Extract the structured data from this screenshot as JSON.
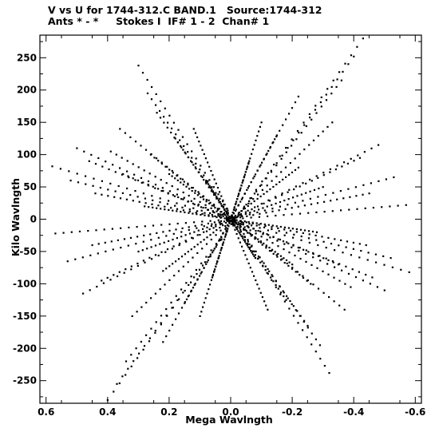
{
  "header": {
    "line1": "V vs U for 1744-312.C BAND.1   Source:1744-312",
    "line2": "Ants * - *     Stokes I  IF# 1 - 2  Chan# 1"
  },
  "chart_data": {
    "type": "scatter",
    "title": "V vs U for 1744-312.C BAND.1   Source:1744-312",
    "subtitle": "Ants * - *     Stokes I  IF# 1 - 2  Chan# 1",
    "xlabel": "Mega Wavlngth",
    "ylabel": "Kilo Wavlngth",
    "xlim": [
      0.62,
      -0.62
    ],
    "ylim": [
      -285,
      285
    ],
    "x_ticks": [
      0.6,
      0.4,
      0.2,
      0.0,
      -0.2,
      -0.4,
      -0.6
    ],
    "x_tick_labels": [
      "0.6",
      "0.4",
      "0.2",
      "0.0",
      "-0.2",
      "-0.4",
      "-0.6"
    ],
    "y_ticks": [
      250,
      200,
      150,
      100,
      50,
      0,
      -50,
      -100,
      -150,
      -200,
      -250
    ],
    "y_tick_labels": [
      "250",
      "200",
      "150",
      "100",
      "50",
      "0",
      "-50",
      "-100",
      "-150",
      "-200",
      "-250"
    ],
    "grid": false,
    "marker_color": "#000000",
    "tracks": [
      {
        "u0": 0.58,
        "v0": 82,
        "u1": -0.58,
        "v1": -82
      },
      {
        "u0": 0.57,
        "v0": -22,
        "u1": -0.57,
        "v1": 22
      },
      {
        "u0": 0.52,
        "v0": 60,
        "u1": -0.52,
        "v1": -60
      },
      {
        "u0": 0.53,
        "v0": -65,
        "u1": -0.53,
        "v1": 65
      },
      {
        "u0": 0.46,
        "v0": 90,
        "u1": -0.46,
        "v1": -90
      },
      {
        "u0": 0.48,
        "v0": -115,
        "u1": -0.48,
        "v1": 115
      },
      {
        "u0": 0.39,
        "v0": 105,
        "u1": -0.39,
        "v1": -105
      },
      {
        "u0": 0.4,
        "v0": -280,
        "u1": -0.43,
        "v1": 280
      },
      {
        "u0": 0.37,
        "v0": -255,
        "u1": -0.4,
        "v1": 252
      },
      {
        "u0": 0.34,
        "v0": -220,
        "u1": -0.36,
        "v1": 215
      },
      {
        "u0": 0.3,
        "v0": 238,
        "u1": -0.32,
        "v1": -238
      },
      {
        "u0": 0.27,
        "v0": 195,
        "u1": -0.29,
        "v1": -195
      },
      {
        "u0": 0.24,
        "v0": 165,
        "u1": -0.25,
        "v1": -165
      },
      {
        "u0": 0.22,
        "v0": -190,
        "u1": -0.22,
        "v1": 190
      },
      {
        "u0": 0.32,
        "v0": -150,
        "u1": -0.33,
        "v1": 150
      },
      {
        "u0": 0.36,
        "v0": 140,
        "u1": -0.37,
        "v1": -140
      },
      {
        "u0": 0.44,
        "v0": 40,
        "u1": -0.44,
        "v1": -40
      },
      {
        "u0": 0.45,
        "v0": -40,
        "u1": -0.45,
        "v1": 40
      },
      {
        "u0": 0.5,
        "v0": 110,
        "u1": -0.5,
        "v1": -110
      },
      {
        "u0": 0.42,
        "v0": -95,
        "u1": -0.42,
        "v1": 95
      },
      {
        "u0": 0.18,
        "v0": 125,
        "u1": -0.18,
        "v1": -125
      },
      {
        "u0": 0.15,
        "v0": -130,
        "u1": -0.15,
        "v1": 130
      },
      {
        "u0": 0.12,
        "v0": 140,
        "u1": -0.12,
        "v1": -140
      },
      {
        "u0": 0.1,
        "v0": -150,
        "u1": -0.1,
        "v1": 150
      },
      {
        "u0": 0.28,
        "v0": 20,
        "u1": -0.28,
        "v1": -20
      },
      {
        "u0": 0.3,
        "v0": -50,
        "u1": -0.3,
        "v1": 50
      },
      {
        "u0": 0.2,
        "v0": 70,
        "u1": -0.2,
        "v1": -70
      },
      {
        "u0": 0.22,
        "v0": -80,
        "u1": -0.22,
        "v1": 80
      },
      {
        "u0": 0.08,
        "v0": 60,
        "u1": -0.08,
        "v1": -60
      },
      {
        "u0": 0.06,
        "v0": -90,
        "u1": -0.06,
        "v1": 90
      },
      {
        "u0": 0.26,
        "v0": 100,
        "u1": -0.26,
        "v1": -100
      },
      {
        "u0": 0.35,
        "v0": 70,
        "u1": -0.35,
        "v1": -70
      }
    ],
    "points_per_track": 44
  }
}
